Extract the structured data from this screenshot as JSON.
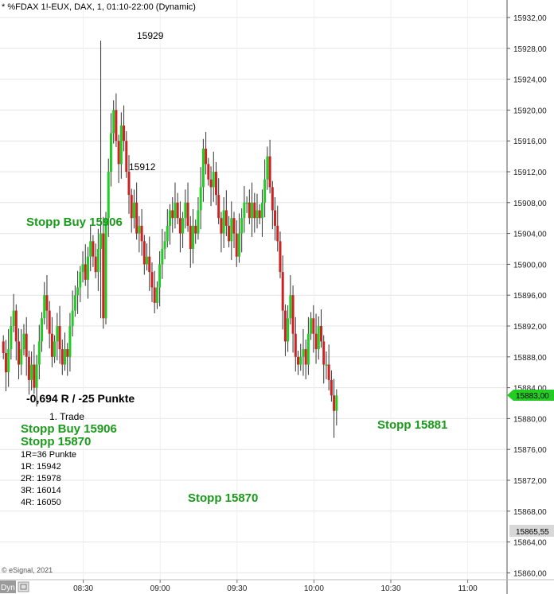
{
  "header": {
    "title": "* %FDAX 1!-EUX, DAX, 1, 01:10-22:00 (Dynamic)"
  },
  "footer": {
    "copyright": "© eSignal, 2021",
    "dyn_label": "Dyn"
  },
  "colors": {
    "up": "#22cc22",
    "down": "#cc2222",
    "accent": "#1a9a1a",
    "grid": "#c8c8c8"
  },
  "chart_data": {
    "type": "candlestick",
    "symbol": "%FDAX 1!-EUX",
    "interval": "1",
    "session": "01:10-22:00",
    "y_ticks": [
      "15932,00",
      "15928,00",
      "15924,00",
      "15920,00",
      "15916,00",
      "15912,00",
      "15908,00",
      "15904,00",
      "15900,00",
      "15896,00",
      "15892,00",
      "15888,00",
      "15884,00",
      "15880,00",
      "15876,00",
      "15872,00",
      "15868,00",
      "15864,00",
      "15860,00"
    ],
    "ylim": [
      15859,
      15934
    ],
    "x_ticks": [
      {
        "label": "08:30",
        "minute": 30
      },
      {
        "label": "09:00",
        "minute": 60
      },
      {
        "label": "09:30",
        "minute": 90
      },
      {
        "label": "10:00",
        "minute": 120
      },
      {
        "label": "10:30",
        "minute": 150
      },
      {
        "label": "11:00",
        "minute": 180
      }
    ],
    "last_price": "15883,00",
    "reference_price": "15865,55",
    "closes": [
      15888.5,
      15886,
      15889,
      15892,
      15894,
      15890,
      15887,
      15889,
      15891,
      15888,
      15885,
      15887,
      15884,
      15887,
      15890,
      15893,
      15896,
      15894,
      15891,
      15888,
      15890,
      15892,
      15889,
      15887,
      15889,
      15888,
      15892,
      15894,
      15896,
      15897,
      15899,
      15900,
      15898,
      15901,
      15903,
      15901,
      15899,
      15902,
      15904,
      15893,
      15906,
      15912,
      15917,
      15920,
      15916,
      15913,
      15918,
      15916,
      15912,
      15909,
      15906,
      15908,
      15904,
      15905,
      15903,
      15900,
      15901,
      15899,
      15897,
      15895,
      15897,
      15900,
      15902,
      15903,
      15905,
      15907,
      15906,
      15908,
      15906,
      15904,
      15906,
      15908,
      15905,
      15902,
      15905,
      15904,
      15907,
      15910,
      15915,
      15913,
      15911,
      15910,
      15912,
      15909,
      15906,
      15904,
      15907,
      15905,
      15903,
      15906,
      15904,
      15901,
      15904,
      15906,
      15908,
      15908,
      15906,
      15908,
      15906,
      15907,
      15906,
      15908,
      15911,
      15914,
      15910,
      15907,
      15905,
      15903,
      15899,
      15894,
      15890,
      15893,
      15896,
      15891,
      15888,
      15887,
      15888,
      15889,
      15887,
      15891,
      15893,
      15891,
      15889,
      15892,
      15890,
      15887,
      15887,
      15885,
      15883,
      15881,
      15883
    ]
  },
  "annotations": {
    "high_label": "15929",
    "level_label": "15912",
    "stopp_buy_left": "Stopp Buy 15906",
    "result": "-0,694 R / -25 Punkte",
    "trade_title": "1. Trade",
    "trade_stopp_buy": "Stopp Buy 15906",
    "trade_stopp": "Stopp 15870",
    "r_def": "1R=36 Punkte",
    "r1": "1R: 15942",
    "r2": "2R: 15978",
    "r3": "3R: 16014",
    "r4": "4R: 16050",
    "stopp_bottom": "Stopp 15870",
    "stopp_right": "Stopp 15881"
  }
}
